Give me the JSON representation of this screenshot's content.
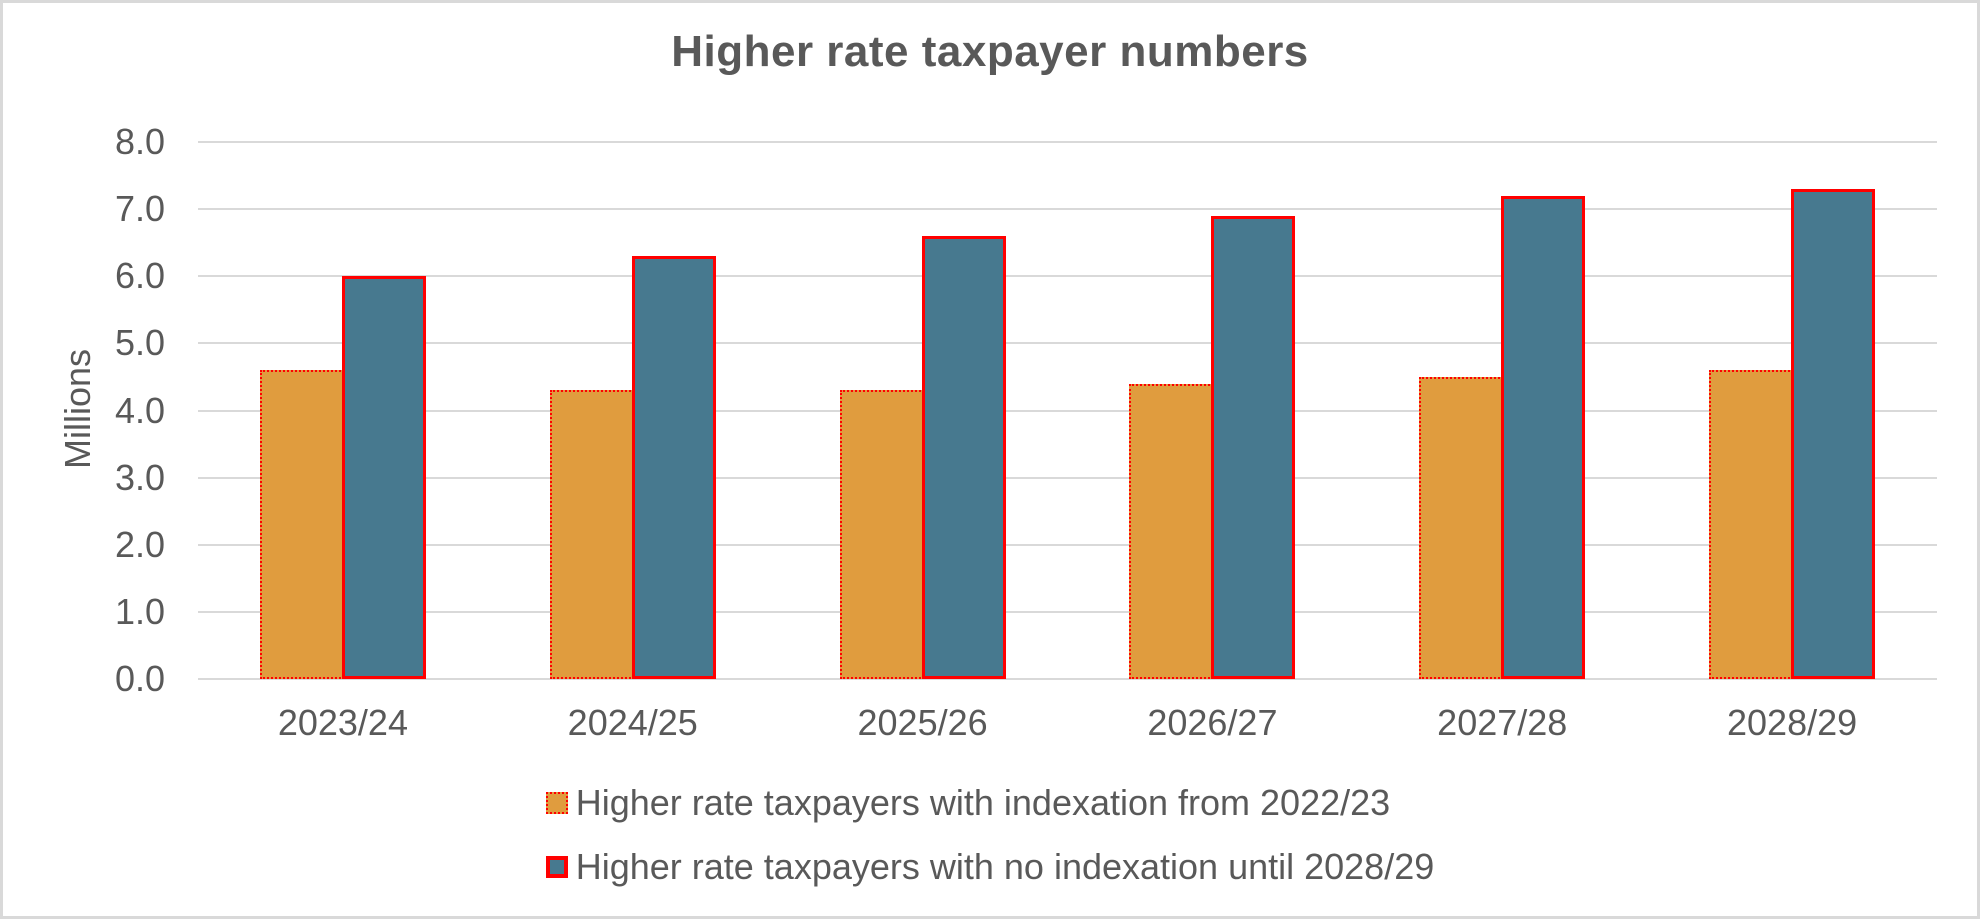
{
  "chart_data": {
    "type": "bar",
    "title": "Higher rate taxpayer numbers",
    "ylabel": "Millions",
    "xlabel": "",
    "categories": [
      "2023/24",
      "2024/25",
      "2025/26",
      "2026/27",
      "2027/28",
      "2028/29"
    ],
    "series": [
      {
        "key": "with-indexation",
        "name": "Higher rate taxpayers with indexation from 2022/23",
        "values": [
          4.6,
          4.3,
          4.3,
          4.4,
          4.5,
          4.6
        ],
        "fill": "#E09C3E",
        "border_color": "#FF0000",
        "border_style": "dotted"
      },
      {
        "key": "no-indexation",
        "name": "Higher rate taxpayers with no indexation until 2028/29",
        "values": [
          6.0,
          6.3,
          6.6,
          6.9,
          7.2,
          7.3
        ],
        "fill": "#47798F",
        "border_color": "#FF0000",
        "border_style": "solid"
      }
    ],
    "ylim": [
      0,
      8
    ],
    "ytick_step": 1.0,
    "ytick_labels": [
      "0.0",
      "1.0",
      "2.0",
      "3.0",
      "4.0",
      "5.0",
      "6.0",
      "7.0",
      "8.0"
    ],
    "grid": "horizontal",
    "gridline_color": "#D9D9D9",
    "legend_position": "bottom",
    "text_color": "#595959",
    "frame_border_color": "#D9D9D9",
    "background_color": "#FFFFFF"
  }
}
